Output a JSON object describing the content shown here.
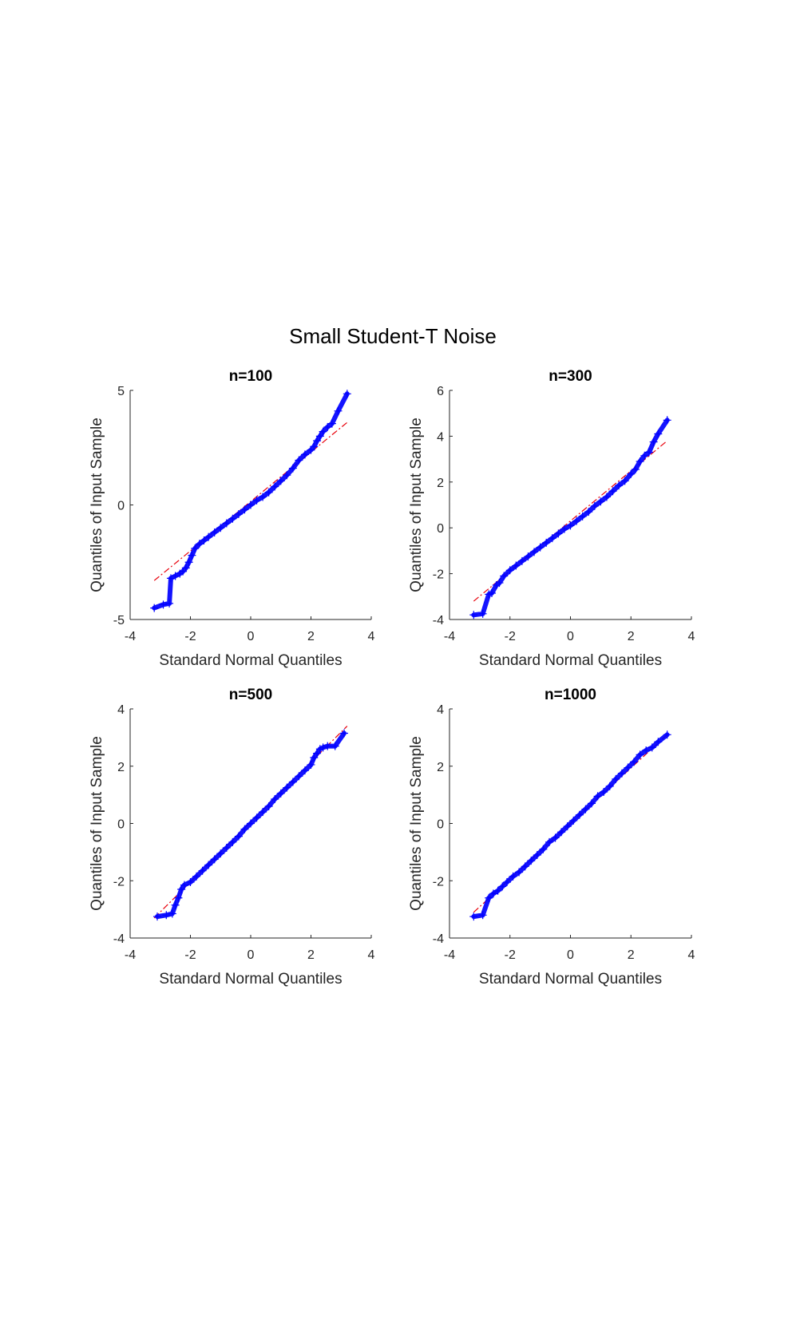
{
  "figure": {
    "title": "Small Student-T Noise"
  },
  "colors": {
    "samples": "#0000ff",
    "reference_line": "#e8000b",
    "axes": "#262626"
  },
  "chart_data": [
    {
      "type": "scatter",
      "title": "n=100",
      "xlabel": "Standard Normal Quantiles",
      "ylabel": "Quantiles of Input Sample",
      "xlim": [
        -4,
        4
      ],
      "ylim": [
        -5,
        5
      ],
      "xticks": [
        -4,
        -2,
        0,
        2,
        4
      ],
      "yticks": [
        -5,
        0,
        5
      ],
      "x_tick_labels": [
        "-4",
        "-2",
        "0",
        "2",
        "4"
      ],
      "y_tick_labels": [
        "-5",
        "0",
        "5"
      ],
      "marker": "plus",
      "grid": false,
      "n": 100,
      "reference_line": {
        "x": [
          -3.2,
          3.2
        ],
        "y": [
          -3.3,
          3.6
        ]
      },
      "series": [
        {
          "points": [
            [
              -3.2,
              -4.5
            ],
            [
              -2.9,
              -4.35
            ],
            [
              -2.7,
              -4.3
            ],
            [
              -2.65,
              -3.2
            ],
            [
              -2.5,
              -3.1
            ],
            [
              -2.35,
              -3.0
            ],
            [
              -2.25,
              -2.9
            ],
            [
              -2.15,
              -2.75
            ],
            [
              -2.05,
              -2.5
            ],
            [
              -1.95,
              -2.2
            ],
            [
              -1.85,
              -1.9
            ],
            [
              -1.7,
              -1.7
            ],
            [
              -1.55,
              -1.55
            ],
            [
              -1.4,
              -1.4
            ],
            [
              -1.2,
              -1.2
            ],
            [
              -1.0,
              -1.0
            ],
            [
              -0.8,
              -0.8
            ],
            [
              -0.6,
              -0.6
            ],
            [
              -0.4,
              -0.4
            ],
            [
              -0.2,
              -0.2
            ],
            [
              0.0,
              0.0
            ],
            [
              0.2,
              0.2
            ],
            [
              0.4,
              0.35
            ],
            [
              0.6,
              0.55
            ],
            [
              0.8,
              0.8
            ],
            [
              1.0,
              1.05
            ],
            [
              1.2,
              1.3
            ],
            [
              1.4,
              1.6
            ],
            [
              1.6,
              1.95
            ],
            [
              1.8,
              2.2
            ],
            [
              2.0,
              2.4
            ],
            [
              2.1,
              2.55
            ],
            [
              2.2,
              2.8
            ],
            [
              2.3,
              3.0
            ],
            [
              2.4,
              3.2
            ],
            [
              2.55,
              3.4
            ],
            [
              2.7,
              3.55
            ],
            [
              2.9,
              4.1
            ],
            [
              3.2,
              4.85
            ]
          ]
        }
      ]
    },
    {
      "type": "scatter",
      "title": "n=300",
      "xlabel": "Standard Normal Quantiles",
      "ylabel": "Quantiles of Input Sample",
      "xlim": [
        -4,
        4
      ],
      "ylim": [
        -4,
        6
      ],
      "xticks": [
        -4,
        -2,
        0,
        2,
        4
      ],
      "yticks": [
        -4,
        -2,
        0,
        2,
        4,
        6
      ],
      "x_tick_labels": [
        "-4",
        "-2",
        "0",
        "2",
        "4"
      ],
      "y_tick_labels": [
        "-4",
        "-2",
        "0",
        "2",
        "4",
        "6"
      ],
      "marker": "plus",
      "grid": false,
      "n": 300,
      "reference_line": {
        "x": [
          -3.2,
          3.2
        ],
        "y": [
          -3.2,
          3.8
        ]
      },
      "series": [
        {
          "points": [
            [
              -3.2,
              -3.8
            ],
            [
              -2.9,
              -3.75
            ],
            [
              -2.7,
              -2.9
            ],
            [
              -2.6,
              -2.85
            ],
            [
              -2.45,
              -2.5
            ],
            [
              -2.35,
              -2.4
            ],
            [
              -2.2,
              -2.1
            ],
            [
              -2.0,
              -1.85
            ],
            [
              -1.8,
              -1.65
            ],
            [
              -1.6,
              -1.45
            ],
            [
              -1.4,
              -1.25
            ],
            [
              -1.2,
              -1.05
            ],
            [
              -1.0,
              -0.85
            ],
            [
              -0.8,
              -0.65
            ],
            [
              -0.6,
              -0.45
            ],
            [
              -0.4,
              -0.25
            ],
            [
              -0.2,
              -0.05
            ],
            [
              0.0,
              0.1
            ],
            [
              0.2,
              0.3
            ],
            [
              0.4,
              0.5
            ],
            [
              0.6,
              0.7
            ],
            [
              0.8,
              0.95
            ],
            [
              1.0,
              1.15
            ],
            [
              1.2,
              1.35
            ],
            [
              1.4,
              1.6
            ],
            [
              1.6,
              1.85
            ],
            [
              1.8,
              2.05
            ],
            [
              2.0,
              2.35
            ],
            [
              2.15,
              2.55
            ],
            [
              2.3,
              2.9
            ],
            [
              2.45,
              3.15
            ],
            [
              2.6,
              3.3
            ],
            [
              2.75,
              3.75
            ],
            [
              2.9,
              4.1
            ],
            [
              3.2,
              4.7
            ]
          ]
        }
      ]
    },
    {
      "type": "scatter",
      "title": "n=500",
      "xlabel": "Standard Normal Quantiles",
      "ylabel": "Quantiles of Input Sample",
      "xlim": [
        -4,
        4
      ],
      "ylim": [
        -4,
        4
      ],
      "xticks": [
        -4,
        -2,
        0,
        2,
        4
      ],
      "yticks": [
        -4,
        -2,
        0,
        2,
        4
      ],
      "x_tick_labels": [
        "-4",
        "-2",
        "0",
        "2",
        "4"
      ],
      "y_tick_labels": [
        "-4",
        "-2",
        "0",
        "2",
        "4"
      ],
      "marker": "plus",
      "grid": false,
      "n": 500,
      "reference_line": {
        "x": [
          -3.2,
          3.2
        ],
        "y": [
          -3.3,
          3.4
        ]
      },
      "series": [
        {
          "points": [
            [
              -3.1,
              -3.25
            ],
            [
              -2.8,
              -3.2
            ],
            [
              -2.6,
              -3.15
            ],
            [
              -2.5,
              -2.85
            ],
            [
              -2.4,
              -2.6
            ],
            [
              -2.3,
              -2.3
            ],
            [
              -2.2,
              -2.15
            ],
            [
              -2.0,
              -2.05
            ],
            [
              -1.8,
              -1.85
            ],
            [
              -1.6,
              -1.65
            ],
            [
              -1.4,
              -1.45
            ],
            [
              -1.2,
              -1.25
            ],
            [
              -1.0,
              -1.05
            ],
            [
              -0.8,
              -0.85
            ],
            [
              -0.6,
              -0.65
            ],
            [
              -0.4,
              -0.45
            ],
            [
              -0.2,
              -0.2
            ],
            [
              0.0,
              0.0
            ],
            [
              0.2,
              0.2
            ],
            [
              0.4,
              0.4
            ],
            [
              0.6,
              0.6
            ],
            [
              0.8,
              0.85
            ],
            [
              1.0,
              1.05
            ],
            [
              1.2,
              1.25
            ],
            [
              1.4,
              1.45
            ],
            [
              1.6,
              1.65
            ],
            [
              1.8,
              1.85
            ],
            [
              2.0,
              2.05
            ],
            [
              2.1,
              2.3
            ],
            [
              2.2,
              2.45
            ],
            [
              2.3,
              2.6
            ],
            [
              2.4,
              2.65
            ],
            [
              2.55,
              2.7
            ],
            [
              2.8,
              2.7
            ],
            [
              3.1,
              3.15
            ]
          ]
        }
      ]
    },
    {
      "type": "scatter",
      "title": "n=1000",
      "xlabel": "Standard Normal Quantiles",
      "ylabel": "Quantiles of Input Sample",
      "xlim": [
        -4,
        4
      ],
      "ylim": [
        -4,
        4
      ],
      "xticks": [
        -4,
        -2,
        0,
        2,
        4
      ],
      "yticks": [
        -4,
        -2,
        0,
        2,
        4
      ],
      "x_tick_labels": [
        "-4",
        "-2",
        "0",
        "2",
        "4"
      ],
      "y_tick_labels": [
        "-4",
        "-2",
        "0",
        "2",
        "4"
      ],
      "marker": "plus",
      "grid": false,
      "n": 1000,
      "reference_line": {
        "x": [
          -3.2,
          3.2
        ],
        "y": [
          -3.1,
          3.1
        ]
      },
      "series": [
        {
          "points": [
            [
              -3.2,
              -3.25
            ],
            [
              -2.9,
              -3.2
            ],
            [
              -2.7,
              -2.6
            ],
            [
              -2.55,
              -2.45
            ],
            [
              -2.4,
              -2.35
            ],
            [
              -2.25,
              -2.2
            ],
            [
              -2.1,
              -2.05
            ],
            [
              -1.9,
              -1.85
            ],
            [
              -1.7,
              -1.7
            ],
            [
              -1.5,
              -1.5
            ],
            [
              -1.3,
              -1.3
            ],
            [
              -1.1,
              -1.1
            ],
            [
              -0.9,
              -0.9
            ],
            [
              -0.7,
              -0.65
            ],
            [
              -0.5,
              -0.5
            ],
            [
              -0.3,
              -0.3
            ],
            [
              -0.1,
              -0.1
            ],
            [
              0.1,
              0.1
            ],
            [
              0.3,
              0.3
            ],
            [
              0.5,
              0.5
            ],
            [
              0.7,
              0.7
            ],
            [
              0.9,
              0.95
            ],
            [
              1.1,
              1.1
            ],
            [
              1.3,
              1.3
            ],
            [
              1.5,
              1.55
            ],
            [
              1.7,
              1.75
            ],
            [
              1.9,
              1.95
            ],
            [
              2.1,
              2.15
            ],
            [
              2.3,
              2.4
            ],
            [
              2.5,
              2.55
            ],
            [
              2.7,
              2.65
            ],
            [
              2.9,
              2.85
            ],
            [
              3.2,
              3.1
            ]
          ]
        }
      ]
    }
  ]
}
